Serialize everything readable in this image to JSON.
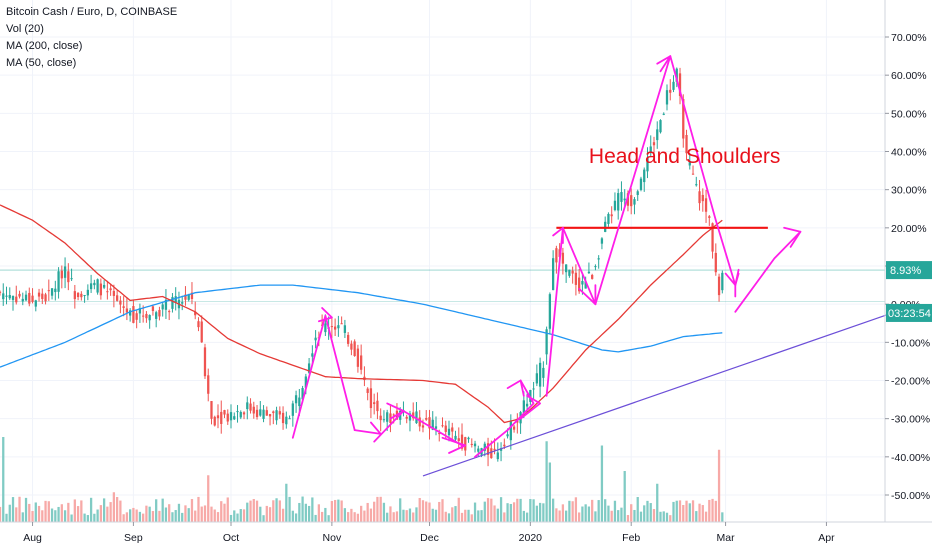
{
  "legend": {
    "title": "Bitcoin Cash / Euro, D, COINBASE",
    "vol": "Vol (20)",
    "ma200": "MA (200, close)",
    "ma50": "MA (50, close)"
  },
  "colors": {
    "up": "#26a69a",
    "down": "#ef5350",
    "vol_up": "#80cbc4",
    "vol_down": "#f7a9a7",
    "ma200": "#2196f3",
    "ma50": "#e53935",
    "annotation_arrows": "#ff1ee8",
    "neckline": "#f21414",
    "trendline": "#6c4fd8",
    "price_label_bg": "#26a69a",
    "countdown_bg": "#26a69a",
    "annotation_text": "#e8111b"
  },
  "price_label": "8.93%",
  "countdown": "03:23:54",
  "chart_data": {
    "type": "candlestick",
    "y_axis": {
      "unit": "percent",
      "range": [
        -55,
        80
      ],
      "ticks": [
        "70.00%",
        "60.00%",
        "50.00%",
        "40.00%",
        "30.00%",
        "20.00%",
        "10.00%",
        "0.00%",
        "-10.00%",
        "-20.00%",
        "-30.00%",
        "-40.00%",
        "-50.00%"
      ],
      "tick_values": [
        70,
        60,
        50,
        40,
        30,
        20,
        10,
        0,
        -10,
        -20,
        -30,
        -40,
        -50
      ]
    },
    "x_axis": {
      "ticks": [
        "Aug",
        "Sep",
        "Oct",
        "Nov",
        "Dec",
        "2020",
        "Feb",
        "Mar",
        "Apr"
      ],
      "tick_days": [
        0,
        31,
        61,
        92,
        122,
        153,
        184,
        213,
        244
      ],
      "range_days": [
        -10,
        262
      ]
    },
    "series": [
      {
        "name": "Price",
        "anchors_day_close": [
          [
            -10,
            3
          ],
          [
            0,
            1
          ],
          [
            5,
            2
          ],
          [
            10,
            10
          ],
          [
            13,
            3
          ],
          [
            20,
            5
          ],
          [
            25,
            1
          ],
          [
            31,
            -3
          ],
          [
            37,
            -2
          ],
          [
            43,
            0
          ],
          [
            48,
            2
          ],
          [
            51,
            -5
          ],
          [
            55,
            -30
          ],
          [
            60,
            -29
          ],
          [
            66,
            -27
          ],
          [
            72,
            -29
          ],
          [
            78,
            -30
          ],
          [
            82,
            -23
          ],
          [
            87,
            -8
          ],
          [
            91,
            -5
          ],
          [
            95,
            -6
          ],
          [
            99,
            -12
          ],
          [
            104,
            -26
          ],
          [
            109,
            -30
          ],
          [
            114,
            -28
          ],
          [
            120,
            -31
          ],
          [
            126,
            -33
          ],
          [
            132,
            -36
          ],
          [
            137,
            -38
          ],
          [
            142,
            -39
          ],
          [
            146,
            -34
          ],
          [
            150,
            -28
          ],
          [
            154,
            -22
          ],
          [
            157,
            -15
          ],
          [
            160,
            14
          ],
          [
            164,
            9
          ],
          [
            168,
            5
          ],
          [
            172,
            8
          ],
          [
            176,
            20
          ],
          [
            180,
            28
          ],
          [
            184,
            27
          ],
          [
            188,
            36
          ],
          [
            192,
            45
          ],
          [
            195,
            55
          ],
          [
            198,
            60
          ],
          [
            201,
            38
          ],
          [
            205,
            28
          ],
          [
            208,
            22
          ],
          [
            211,
            2
          ],
          [
            212,
            8.93
          ]
        ]
      },
      {
        "name": "MA (200, close)",
        "anchors_day_value": [
          [
            -10,
            -16.5
          ],
          [
            10,
            -10
          ],
          [
            30,
            -2
          ],
          [
            50,
            3
          ],
          [
            70,
            5
          ],
          [
            80,
            5
          ],
          [
            100,
            3
          ],
          [
            120,
            0
          ],
          [
            140,
            -4
          ],
          [
            160,
            -8
          ],
          [
            175,
            -12
          ],
          [
            180,
            -12.5
          ],
          [
            190,
            -11
          ],
          [
            200,
            -8.5
          ],
          [
            212,
            -7.5
          ]
        ]
      },
      {
        "name": "MA (50, close)",
        "anchors_day_value": [
          [
            -10,
            26
          ],
          [
            0,
            22
          ],
          [
            10,
            16
          ],
          [
            20,
            8
          ],
          [
            30,
            1
          ],
          [
            40,
            2
          ],
          [
            50,
            -2
          ],
          [
            60,
            -9
          ],
          [
            70,
            -13
          ],
          [
            80,
            -16
          ],
          [
            90,
            -19
          ],
          [
            100,
            -19.5
          ],
          [
            120,
            -20
          ],
          [
            130,
            -21
          ],
          [
            140,
            -27
          ],
          [
            145,
            -31
          ],
          [
            150,
            -30
          ],
          [
            160,
            -22
          ],
          [
            170,
            -12
          ],
          [
            180,
            -4
          ],
          [
            190,
            5
          ],
          [
            200,
            13
          ],
          [
            206,
            18
          ],
          [
            212,
            22
          ]
        ]
      },
      {
        "name": "Volume",
        "note": "relative heights 0-1 of the volume pane",
        "spikes_day_height": [
          [
            -9,
            1.0
          ],
          [
            25,
            0.35
          ],
          [
            54,
            0.55
          ],
          [
            78,
            0.45
          ],
          [
            158,
            0.95
          ],
          [
            159,
            0.7
          ],
          [
            175,
            0.9
          ],
          [
            182,
            0.6
          ],
          [
            192,
            0.45
          ],
          [
            211,
            0.85
          ]
        ]
      }
    ],
    "annotations": {
      "text": "Head and Shoulders",
      "neckline": [
        [
          161,
          20
        ],
        [
          226,
          20
        ]
      ],
      "trendline": [
        [
          120,
          -45
        ],
        [
          272,
          0
        ]
      ],
      "zigzag_arrows": [
        [
          [
            80,
            -35
          ],
          [
            90,
            -3
          ],
          [
            99,
            -33
          ]
        ],
        [
          [
            88,
            -4.5
          ],
          [
            92,
            -3.5
          ],
          [
            89,
            -1
          ]
        ],
        [
          [
            99,
            -33
          ],
          [
            107,
            -34
          ],
          [
            104,
            -31
          ]
        ],
        [
          [
            105,
            -36
          ],
          [
            114,
            -28
          ],
          [
            132,
            -37
          ]
        ],
        [
          [
            110,
            -30
          ],
          [
            114,
            -28
          ],
          [
            109,
            -26
          ]
        ],
        [
          [
            126,
            -35
          ],
          [
            133,
            -37
          ],
          [
            128,
            -39
          ]
        ],
        [
          [
            136,
            -40
          ],
          [
            146,
            -33
          ],
          [
            154,
            -26
          ],
          [
            150,
            -20
          ]
        ],
        [
          [
            146,
            -22
          ],
          [
            150,
            -20
          ],
          [
            151,
            -24
          ]
        ],
        [
          [
            150,
            -30
          ],
          [
            156,
            -26
          ],
          [
            152,
            -24
          ]
        ],
        [
          [
            158,
            -24
          ],
          [
            163,
            20
          ],
          [
            173,
            0
          ]
        ],
        [
          [
            160,
            18
          ],
          [
            163,
            20
          ],
          [
            163,
            16
          ]
        ],
        [
          [
            168,
            4
          ],
          [
            173,
            0
          ],
          [
            173,
            5
          ]
        ],
        [
          [
            173,
            0
          ],
          [
            196,
            65
          ],
          [
            210,
            22
          ],
          [
            216,
            5
          ]
        ],
        [
          [
            192,
            63
          ],
          [
            196,
            65
          ],
          [
            193,
            61
          ]
        ],
        [
          [
            213,
            8
          ],
          [
            216,
            5
          ],
          [
            217,
            9
          ]
        ],
        [
          [
            216,
            -2
          ],
          [
            228,
            12
          ],
          [
            236,
            19
          ]
        ],
        [
          [
            231,
            20
          ],
          [
            236,
            19
          ],
          [
            233,
            15
          ]
        ],
        [
          [
            216,
            2
          ],
          [
            216,
            5
          ],
          [
            217,
            8
          ]
        ]
      ]
    }
  }
}
